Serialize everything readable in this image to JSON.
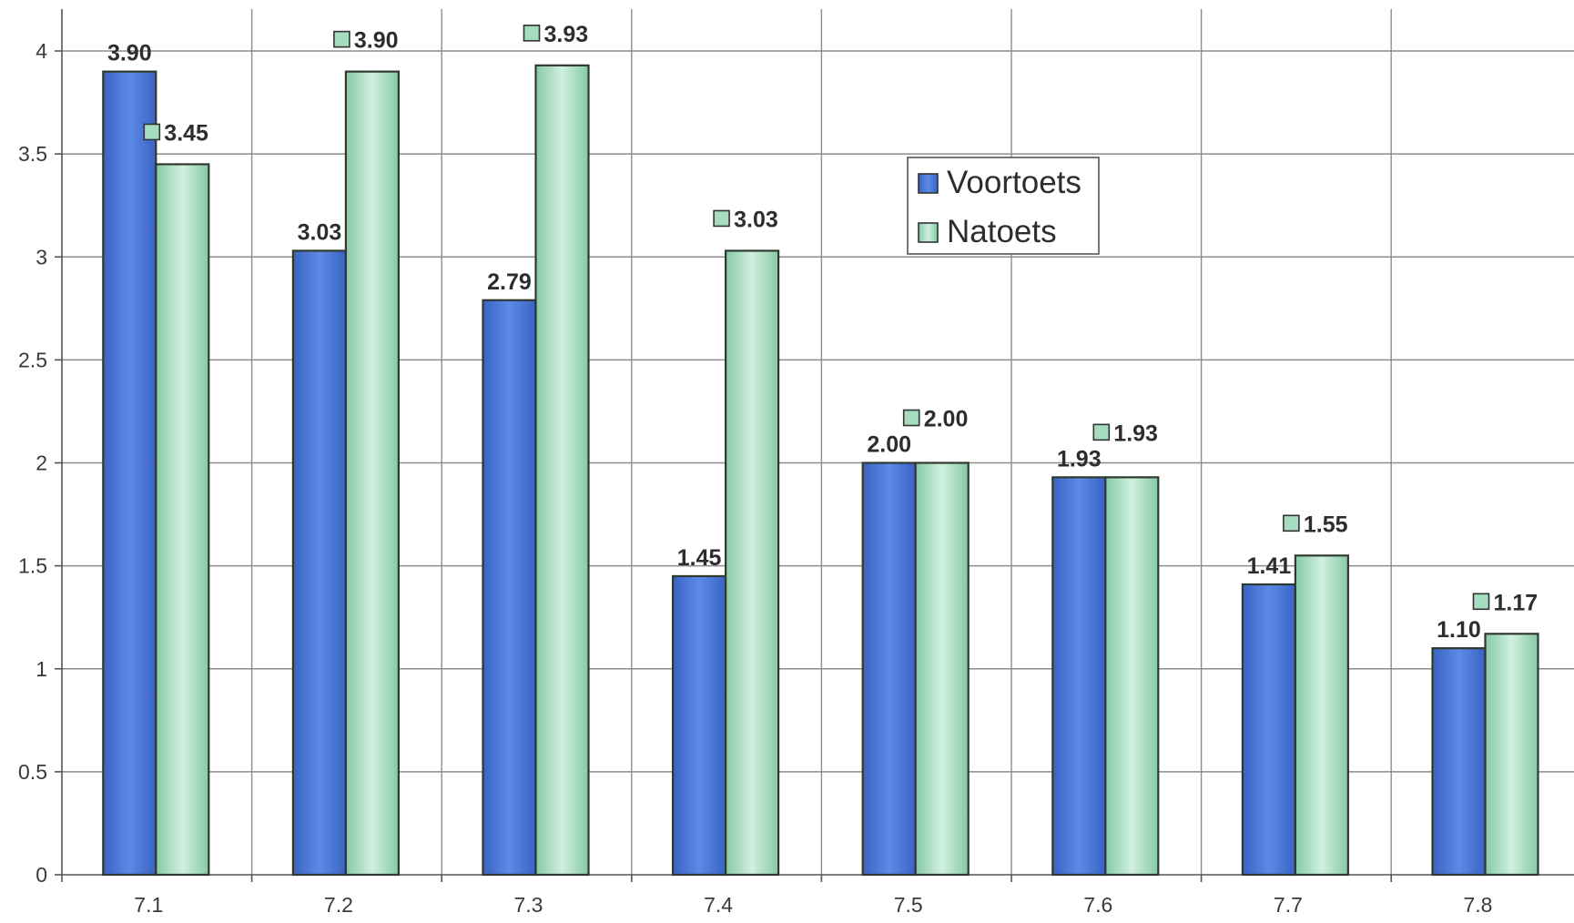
{
  "chart_data": {
    "type": "bar",
    "categories": [
      "7.1",
      "7.2",
      "7.3",
      "7.4",
      "7.5",
      "7.6",
      "7.7",
      "7.8"
    ],
    "series": [
      {
        "name": "Voortoets",
        "values": [
          3.9,
          3.03,
          2.79,
          1.45,
          2.0,
          1.93,
          1.41,
          1.1
        ],
        "labels": [
          "3.90",
          "3.03",
          "2.79",
          "1.45",
          "2.00",
          "1.93",
          "1.41",
          "1.10"
        ],
        "color": "#4a79d6"
      },
      {
        "name": "Natoets",
        "values": [
          3.45,
          3.9,
          3.93,
          3.03,
          2.0,
          1.93,
          1.55,
          1.17
        ],
        "labels": [
          "3.45",
          "3.90",
          "3.93",
          "3.03",
          "2.00",
          "1.93",
          "1.55",
          "1.17"
        ],
        "color": "#a6dcc0"
      }
    ],
    "yticks": [
      "0",
      "0.5",
      "1",
      "1.5",
      "2",
      "2.5",
      "3",
      "3.5",
      "4"
    ],
    "ylim": [
      0,
      4.2
    ],
    "grid": true,
    "legend_position": "upper-center",
    "title": "",
    "xlabel": "",
    "ylabel": ""
  }
}
